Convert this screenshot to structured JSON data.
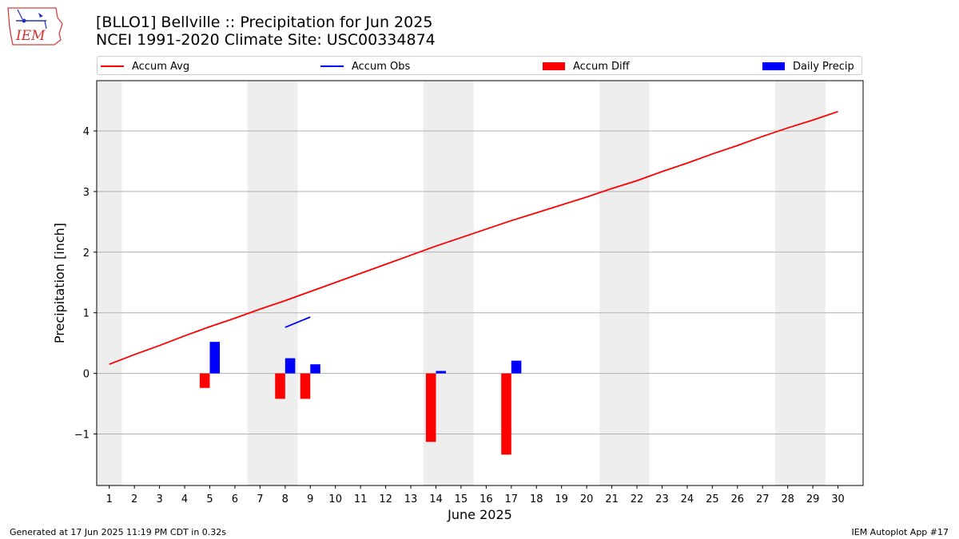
{
  "header": {
    "logo_text": "IEM",
    "title_line1": "[BLLO1] Bellville :: Precipitation for Jun 2025",
    "title_line2": "NCEI 1991-2020 Climate Site: USC00334874"
  },
  "legend": {
    "items": [
      {
        "label": "Accum Avg",
        "color": "#ff0000",
        "kind": "line"
      },
      {
        "label": "Accum Obs",
        "color": "#0000ff",
        "kind": "line"
      },
      {
        "label": "Accum Diff",
        "color": "#ff0000",
        "kind": "patch"
      },
      {
        "label": "Daily Precip",
        "color": "#0000ff",
        "kind": "patch"
      }
    ]
  },
  "chart_data": {
    "type": "bar",
    "title": "[BLLO1] Bellville :: Precipitation for Jun 2025",
    "subtitle": "NCEI 1991-2020 Climate Site: USC00334874",
    "xlabel": "June 2025",
    "ylabel": "Precipitation [inch]",
    "xlim": [
      0.5,
      31
    ],
    "ylim": [
      -1.85,
      4.83
    ],
    "x_ticks": [
      1,
      2,
      3,
      4,
      5,
      6,
      7,
      8,
      9,
      10,
      11,
      12,
      13,
      14,
      15,
      16,
      17,
      18,
      19,
      20,
      21,
      22,
      23,
      24,
      25,
      26,
      27,
      28,
      29,
      30
    ],
    "x_tick_labels": [
      "1",
      "2",
      "3",
      "4",
      "5",
      "6",
      "7",
      "8",
      "9",
      "10",
      "11",
      "12",
      "13",
      "14",
      "15",
      "16",
      "17",
      "18",
      "19",
      "20",
      "21",
      "22",
      "23",
      "24",
      "25",
      "26",
      "27",
      "28",
      "29",
      "30"
    ],
    "y_ticks": [
      -1,
      0,
      1,
      2,
      3,
      4
    ],
    "y_tick_labels": [
      "−1",
      "0",
      "1",
      "2",
      "3",
      "4"
    ],
    "grid": "y",
    "weekend_shading": [
      [
        0.5,
        1.5
      ],
      [
        6.5,
        8.5
      ],
      [
        13.5,
        15.5
      ],
      [
        20.5,
        22.5
      ],
      [
        27.5,
        29.5
      ]
    ],
    "series": [
      {
        "name": "Accum Avg",
        "type": "line",
        "color": "#ff0000",
        "x": [
          1,
          2,
          3,
          4,
          5,
          6,
          7,
          8,
          9,
          10,
          11,
          12,
          13,
          14,
          15,
          16,
          17,
          18,
          19,
          20,
          21,
          22,
          23,
          24,
          25,
          26,
          27,
          28,
          29,
          30
        ],
        "values": [
          0.15,
          0.31,
          0.46,
          0.62,
          0.77,
          0.91,
          1.06,
          1.2,
          1.35,
          1.5,
          1.65,
          1.8,
          1.95,
          2.1,
          2.24,
          2.38,
          2.52,
          2.65,
          2.78,
          2.91,
          3.05,
          3.18,
          3.33,
          3.47,
          3.62,
          3.76,
          3.91,
          4.05,
          4.18,
          4.32
        ]
      },
      {
        "name": "Accum Obs",
        "type": "line",
        "color": "#0000ff",
        "x": [
          8,
          9
        ],
        "values": [
          0.76,
          0.93
        ]
      },
      {
        "name": "Accum Diff",
        "type": "bar",
        "color": "#ff0000",
        "offset": -0.2,
        "x": [
          5,
          8,
          9,
          14,
          17
        ],
        "values": [
          -0.24,
          -0.42,
          -0.42,
          -1.13,
          -1.34
        ]
      },
      {
        "name": "Daily Precip",
        "type": "bar",
        "color": "#0000ff",
        "offset": 0.2,
        "x": [
          5,
          8,
          9,
          14,
          17
        ],
        "values": [
          0.52,
          0.25,
          0.15,
          0.04,
          0.21
        ]
      }
    ]
  },
  "footer": {
    "left": "Generated at 17 Jun 2025 11:19 PM CDT in 0.32s",
    "right": "IEM Autoplot App #17"
  }
}
